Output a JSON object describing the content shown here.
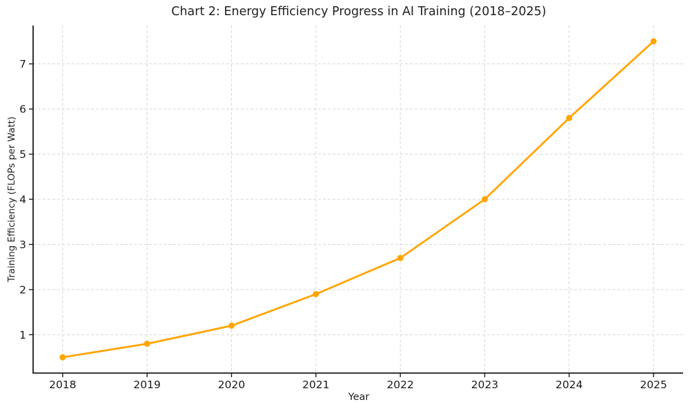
{
  "page": {
    "background_color": "#ffffff"
  },
  "chart_data": {
    "type": "line",
    "title": "Chart 2: Energy Efficiency Progress in AI Training (2018–2025)",
    "xlabel": "Year",
    "ylabel": "Training Efficiency (FLOPs per Watt)",
    "x": [
      2018,
      2019,
      2020,
      2021,
      2022,
      2023,
      2024,
      2025
    ],
    "series": [
      {
        "values": [
          0.5,
          0.8,
          1.2,
          1.9,
          2.7,
          4.0,
          5.8,
          7.5
        ],
        "color": "#FFA500",
        "marker": "circle"
      }
    ],
    "xticks": [
      2018,
      2019,
      2020,
      2021,
      2022,
      2023,
      2024,
      2025
    ],
    "yticks": [
      1,
      2,
      3,
      4,
      5,
      6,
      7
    ],
    "xlim": [
      2017.65,
      2025.35
    ],
    "ylim": [
      0.15,
      7.85
    ],
    "grid": true,
    "grid_style": "dashed",
    "grid_color": "#d6d6d6",
    "axis_color": "#1a1a1a",
    "tick_label_color": "#1a1a1a",
    "legend_position": "none"
  }
}
